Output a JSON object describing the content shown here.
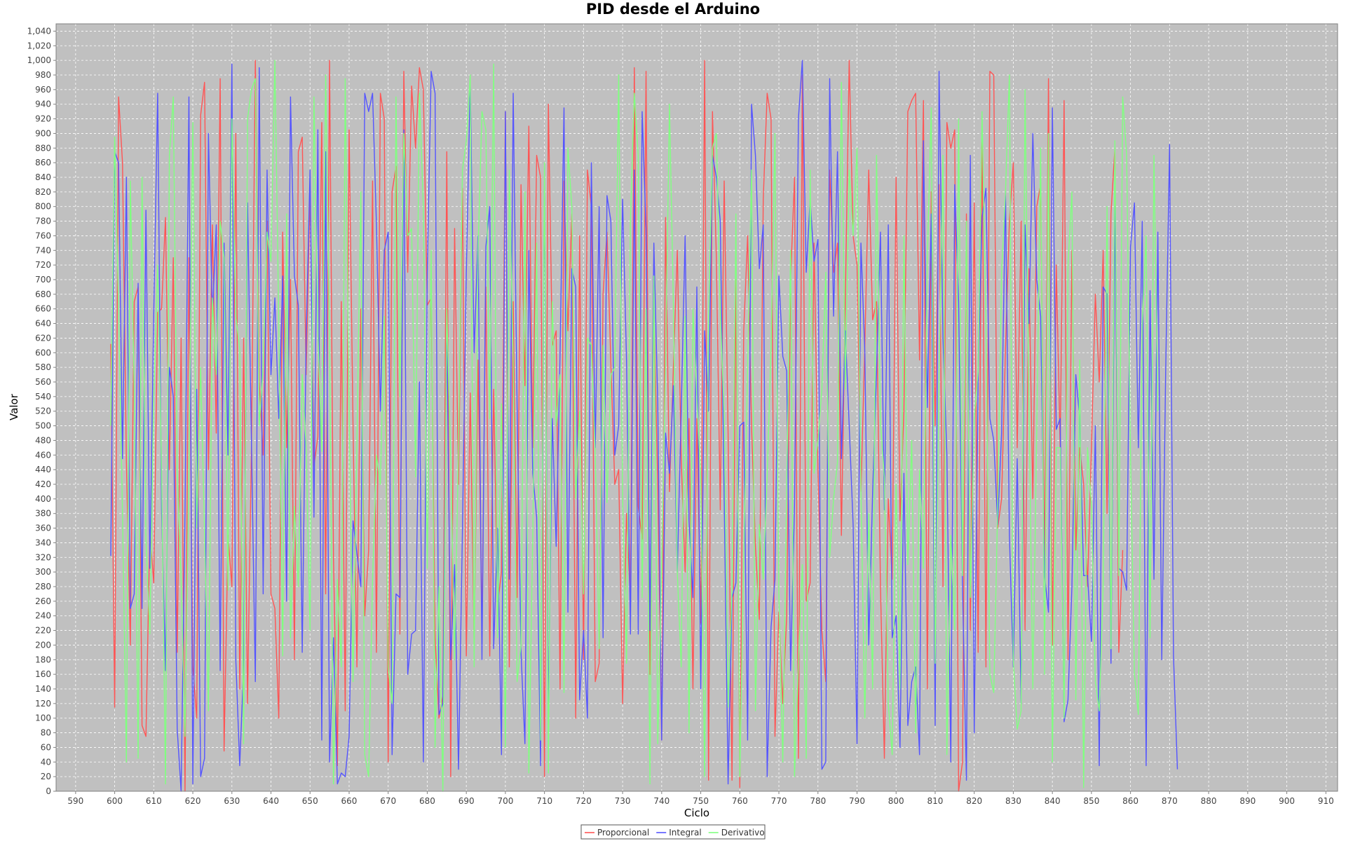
{
  "chart_data": {
    "type": "line",
    "title": "PID desde el Arduino",
    "xlabel": "Ciclo",
    "ylabel": "Valor",
    "xlim": [
      585,
      913
    ],
    "ylim": [
      0,
      1050
    ],
    "xticks": [
      590,
      600,
      610,
      620,
      630,
      640,
      650,
      660,
      670,
      680,
      690,
      700,
      710,
      720,
      730,
      740,
      750,
      760,
      770,
      780,
      790,
      800,
      810,
      820,
      830,
      840,
      850,
      860,
      870,
      880,
      890,
      900,
      910
    ],
    "yticks": [
      "0",
      "20",
      "40",
      "60",
      "80",
      "100",
      "120",
      "140",
      "160",
      "180",
      "200",
      "220",
      "240",
      "260",
      "280",
      "300",
      "320",
      "340",
      "360",
      "380",
      "400",
      "420",
      "440",
      "460",
      "480",
      "500",
      "520",
      "540",
      "560",
      "580",
      "600",
      "620",
      "640",
      "660",
      "680",
      "700",
      "720",
      "740",
      "760",
      "780",
      "800",
      "820",
      "840",
      "860",
      "880",
      "900",
      "920",
      "940",
      "960",
      "980",
      "1,000",
      "1,020",
      "1,040"
    ],
    "grid": true,
    "legend": "bottom-center",
    "colors": {
      "plot_bg": "#c0c0c0",
      "grid": "#ffffff"
    },
    "x_start": 599,
    "series": [
      {
        "name": "Proporcional",
        "color": "#ff5555",
        "values": [
          612,
          115,
          950,
          860,
          450,
          200,
          670,
          690,
          90,
          75,
          355,
          285,
          655,
          660,
          785,
          440,
          730,
          190,
          620,
          0,
          730,
          170,
          100,
          925,
          970,
          440,
          775,
          490,
          975,
          55,
          350,
          280,
          900,
          140,
          620,
          120,
          470,
          1000,
          560,
          460,
          780,
          270,
          250,
          100,
          765,
          470,
          700,
          180,
          875,
          895,
          570,
          820,
          445,
          485,
          915,
          270,
          1000,
          320,
          35,
          670,
          110,
          905,
          500,
          170,
          660,
          240,
          330,
          835,
          190,
          955,
          920,
          40,
          820,
          855,
          215,
          985,
          710,
          965,
          880,
          990,
          960,
          665,
          675,
          210,
          100,
          130,
          875,
          20,
          770,
          420,
          825,
          185,
          545,
          200,
          590,
          225,
          690,
          185,
          550,
          255,
          300,
          930,
          170,
          670,
          265,
          830,
          555,
          910,
          470,
          870,
          840,
          20,
          940,
          610,
          630,
          140,
          835,
          630,
          790,
          100,
          760,
          180,
          850,
          800,
          150,
          175,
          680,
          765,
          585,
          420,
          440,
          120,
          380,
          260,
          990,
          390,
          345,
          985,
          160,
          660,
          420,
          70,
          785,
          410,
          580,
          740,
          455,
          300,
          510,
          140,
          510,
          230,
          1000,
          15,
          930,
          730,
          385,
          835,
          490,
          15,
          700,
          5,
          630,
          760,
          500,
          335,
          235,
          810,
          955,
          920,
          75,
          245,
          120,
          240,
          700,
          840,
          45,
          980,
          260,
          285,
          750,
          440,
          220,
          150,
          850,
          710,
          750,
          350,
          670,
          1000,
          760,
          720,
          410,
          610,
          850,
          645,
          670,
          280,
          45,
          400,
          290,
          840,
          370,
          520,
          930,
          945,
          955,
          590,
          945,
          140,
          820,
          500,
          830,
          280,
          915,
          880,
          905,
          0,
          40,
          790,
          220,
          805,
          190,
          910,
          170,
          985,
          980,
          360,
          400,
          605,
          780,
          860,
          470,
          780,
          220,
          715,
          400,
          800,
          830,
          300,
          975,
          200,
          720,
          470,
          945,
          180,
          740,
          330,
          470,
          420,
          280,
          470,
          680,
          560,
          740,
          380,
          790,
          880,
          190,
          330
        ]
      },
      {
        "name": "Integral",
        "color": "#5555ff",
        "values": [
          322,
          875,
          860,
          455,
          840,
          250,
          270,
          695,
          250,
          795,
          305,
          655,
          955,
          385,
          165,
          580,
          540,
          85,
          0,
          380,
          950,
          10,
          550,
          20,
          45,
          900,
          650,
          775,
          165,
          750,
          460,
          995,
          180,
          35,
          170,
          805,
          480,
          150,
          990,
          270,
          850,
          570,
          675,
          510,
          705,
          260,
          950,
          705,
          665,
          190,
          620,
          850,
          375,
          905,
          70,
          875,
          40,
          210,
          10,
          25,
          20,
          75,
          370,
          325,
          280,
          955,
          930,
          955,
          775,
          520,
          740,
          765,
          50,
          270,
          265,
          905,
          160,
          215,
          220,
          560,
          40,
          710,
          985,
          955,
          105,
          120,
          630,
          180,
          310,
          30,
          355,
          710,
          970,
          600,
          760,
          180,
          745,
          800,
          195,
          360,
          50,
          930,
          290,
          955,
          525,
          190,
          65,
          740,
          435,
          375,
          35,
          835,
          100,
          510,
          335,
          600,
          935,
          245,
          715,
          690,
          125,
          220,
          100,
          860,
          470,
          800,
          210,
          815,
          780,
          460,
          500,
          810,
          590,
          215,
          850,
          215,
          930,
          770,
          220,
          750,
          530,
          70,
          490,
          435,
          555,
          300,
          520,
          760,
          370,
          265,
          690,
          140,
          630,
          520,
          870,
          840,
          780,
          400,
          10,
          265,
          285,
          500,
          505,
          70,
          940,
          870,
          715,
          775,
          20,
          225,
          290,
          705,
          595,
          575,
          165,
          390,
          920,
          1000,
          710,
          810,
          725,
          755,
          30,
          40,
          975,
          650,
          875,
          455,
          630,
          500,
          365,
          65,
          750,
          600,
          200,
          410,
          575,
          765,
          385,
          775,
          210,
          240,
          60,
          435,
          90,
          150,
          170,
          50,
          890,
          525,
          790,
          90,
          985,
          620,
          460,
          40,
          830,
          670,
          280,
          15,
          870,
          80,
          565,
          785,
          825,
          510,
          480,
          365,
          490,
          820,
          350,
          170,
          455,
          120,
          775,
          640,
          900,
          700,
          650,
          295,
          245,
          935,
          495,
          510,
          95,
          125,
          280,
          570,
          510,
          295,
          295,
          205,
          500,
          35,
          690,
          680,
          175,
          800,
          305,
          300,
          275,
          745,
          805,
          470,
          780,
          35,
          685,
          290,
          765,
          180,
          575,
          885,
          185,
          30
        ]
      },
      {
        "name": "Derivativo",
        "color": "#80ff80",
        "values": [
          500,
          895,
          660,
          380,
          40,
          835,
          550,
          45,
          840,
          345,
          215,
          540,
          720,
          440,
          10,
          870,
          950,
          440,
          290,
          75,
          440,
          915,
          360,
          580,
          355,
          110,
          675,
          570,
          780,
          730,
          275,
          920,
          650,
          605,
          65,
          920,
          960,
          975,
          500,
          580,
          765,
          725,
          1000,
          640,
          185,
          790,
          210,
          390,
          280,
          570,
          470,
          220,
          950,
          630,
          465,
          980,
          620,
          10,
          290,
          170,
          975,
          520,
          150,
          480,
          820,
          50,
          20,
          290,
          460,
          420,
          650,
          170,
          120,
          950,
          540,
          900,
          760,
          770,
          430,
          955,
          800,
          305,
          740,
          60,
          280,
          0,
          660,
          455,
          180,
          475,
          850,
          890,
          980,
          170,
          740,
          930,
          905,
          510,
          995,
          210,
          530,
          60,
          850,
          590,
          150,
          200,
          820,
          25,
          350,
          750,
          70,
          860,
          25,
          670,
          500,
          570,
          135,
          880,
          800,
          400,
          520,
          270,
          620,
          610,
          460,
          195,
          610,
          395,
          570,
          580,
          980,
          400,
          175,
          780,
          955,
          870,
          265,
          660,
          10,
          705,
          65,
          310,
          590,
          940,
          665,
          300,
          170,
          650,
          80,
          660,
          540,
          430,
          20,
          645,
          880,
          900,
          655,
          515,
          115,
          280,
          790,
          20,
          320,
          580,
          850,
          110,
          365,
          290,
          430,
          610,
          900,
          270,
          40,
          420,
          740,
          20,
          175,
          310,
          45,
          850,
          435,
          480,
          550,
          710,
          320,
          400,
          450,
          970,
          550,
          850,
          760,
          880,
          410,
          100,
          380,
          140,
          870,
          505,
          430,
          120,
          50,
          420,
          140,
          760,
          310,
          480,
          80,
          440,
          305,
          730,
          935,
          175,
          570,
          870,
          50,
          350,
          220,
          920,
          295,
          780,
          265,
          510,
          575,
          930,
          640,
          160,
          135,
          390,
          710,
          820,
          980,
          180,
          85,
          110,
          960,
          530,
          140,
          495,
          880,
          160,
          900,
          40,
          470,
          470,
          100,
          720,
          820,
          125,
          590,
          5,
          470,
          390,
          150,
          110,
          280,
          800,
          195,
          890,
          295,
          950,
          870,
          460,
          160,
          105,
          640,
          760,
          210,
          870,
          520
        ]
      }
    ]
  }
}
